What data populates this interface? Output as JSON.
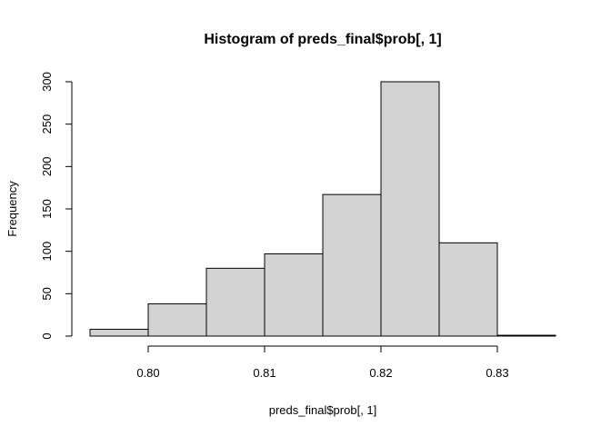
{
  "chart_data": {
    "type": "bar",
    "subtype": "histogram",
    "title": "Histogram of preds_final$prob[, 1]",
    "xlabel": "preds_final$prob[, 1]",
    "ylabel": "Frequency",
    "bin_edges": [
      0.795,
      0.8,
      0.805,
      0.81,
      0.815,
      0.82,
      0.825,
      0.83,
      0.835
    ],
    "values": [
      8,
      38,
      80,
      97,
      167,
      300,
      110,
      1
    ],
    "xlim": [
      0.795,
      0.835
    ],
    "ylim": [
      0,
      300
    ],
    "x_ticks": [
      0.8,
      0.81,
      0.82,
      0.83
    ],
    "x_tick_labels": [
      "0.80",
      "0.81",
      "0.82",
      "0.83"
    ],
    "y_ticks": [
      0,
      50,
      100,
      150,
      200,
      250,
      300
    ],
    "y_tick_labels": [
      "0",
      "50",
      "100",
      "150",
      "200",
      "250",
      "300"
    ],
    "bar_fill": "#d3d3d3",
    "bar_stroke": "#000000",
    "grid": false,
    "legend": "none"
  }
}
